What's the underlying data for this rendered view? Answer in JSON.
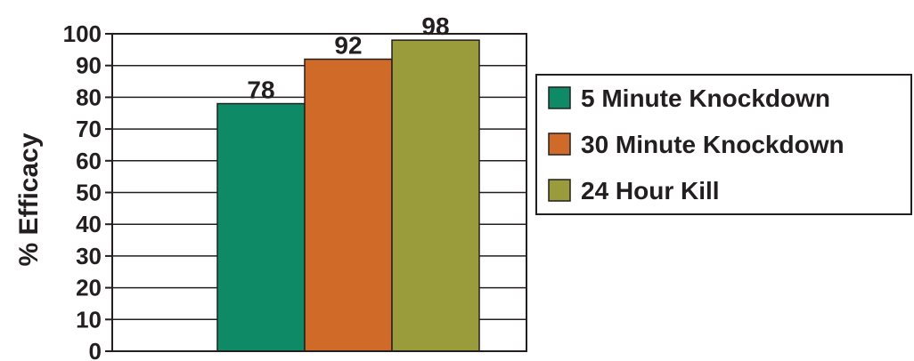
{
  "chart_data": {
    "type": "bar",
    "title": "",
    "xlabel": "",
    "ylabel": "% Efficacy",
    "ylim": [
      0,
      100
    ],
    "yticks": [
      0,
      10,
      20,
      30,
      40,
      50,
      60,
      70,
      80,
      90,
      100
    ],
    "grid": true,
    "legend_position": "right",
    "series": [
      {
        "name": "5 Minute Knockdown",
        "values": [
          78
        ],
        "color": "#0e8a66",
        "label": "78"
      },
      {
        "name": "30 Minute Knockdown",
        "values": [
          92
        ],
        "color": "#cf6a29",
        "label": "92"
      },
      {
        "name": "24 Hour Kill",
        "values": [
          98
        ],
        "color": "#9a9b3a",
        "label": "98"
      }
    ]
  }
}
